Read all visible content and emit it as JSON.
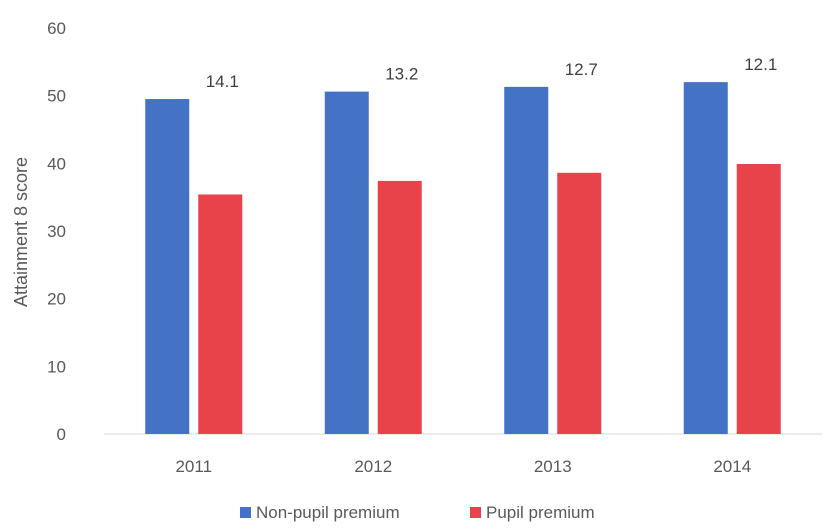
{
  "chart_data": {
    "type": "bar",
    "categories": [
      "2011",
      "2012",
      "2013",
      "2014"
    ],
    "series": [
      {
        "name": "Non-pupil premium",
        "values": [
          49.5,
          50.6,
          51.3,
          52.0
        ],
        "color": "#4472C4"
      },
      {
        "name": "Pupil premium",
        "values": [
          35.4,
          37.4,
          38.6,
          39.9
        ],
        "color": "#E8434A"
      }
    ],
    "gap_labels": [
      "14.1",
      "13.2",
      "12.7",
      "12.1"
    ],
    "xlabel": "",
    "ylabel": "Attainment 8 score",
    "ylim": [
      0,
      60
    ],
    "yticks": [
      0,
      10,
      20,
      30,
      40,
      50,
      60
    ],
    "grid": false,
    "legend": "bottom-center"
  }
}
